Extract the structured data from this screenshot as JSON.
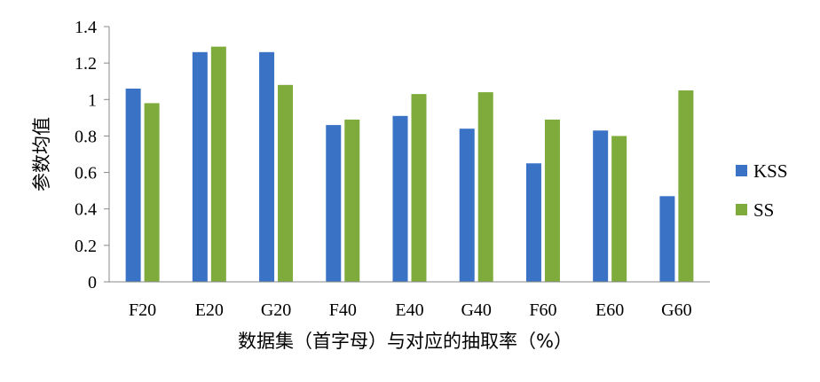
{
  "chart_data": {
    "type": "bar",
    "categories": [
      "F20",
      "E20",
      "G20",
      "F40",
      "E40",
      "G40",
      "F60",
      "E60",
      "G60"
    ],
    "series": [
      {
        "name": "KSS",
        "color": "#3A73C5",
        "values": [
          1.06,
          1.26,
          1.26,
          0.86,
          0.91,
          0.84,
          0.65,
          0.83,
          0.47
        ]
      },
      {
        "name": "SS",
        "color": "#7EAB3B",
        "values": [
          0.98,
          1.29,
          1.08,
          0.89,
          1.03,
          1.04,
          0.89,
          0.8,
          1.05
        ]
      }
    ],
    "title": "",
    "xlabel": "数据集（首字母）与对应的抽取率（%）",
    "ylabel": "参数均值",
    "ylim": [
      0,
      1.4
    ],
    "yticks": [
      "0",
      "0.2",
      "0.4",
      "0.6",
      "0.8",
      "1",
      "1.2",
      "1.4"
    ],
    "grid": false,
    "legend": "right"
  }
}
